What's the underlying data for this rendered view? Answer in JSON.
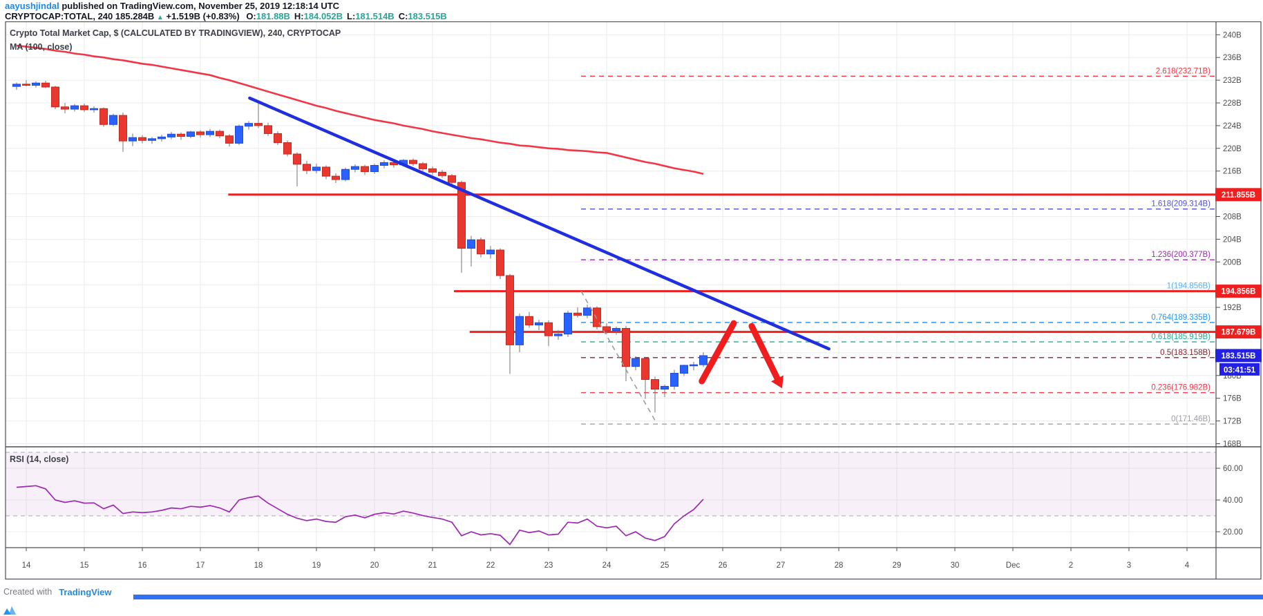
{
  "header": {
    "author": "aayushjindal",
    "published": " published on TradingView.com, November 25, 2019 12:18:14 UTC",
    "symbol": "CRYPTOCAP:TOTAL, 240",
    "last_price": "185.284B",
    "up_triangle": "▲",
    "change": "+1.519B (+0.83%)",
    "ohlc": [
      {
        "k": "O:",
        "v": "181.88B"
      },
      {
        "k": "H:",
        "v": "184.052B"
      },
      {
        "k": "L:",
        "v": "181.514B"
      },
      {
        "k": "C:",
        "v": "183.515B"
      }
    ]
  },
  "chart": {
    "title": "Crypto Total Market Cap, $ (CALCULATED BY TRADINGVIEW), 240, CRYPTOCAP",
    "ma_label": "MA (100, close)",
    "rsi_label": "RSI (14, close)"
  },
  "footer": {
    "created_with": "Created with",
    "brand": "TradingView"
  },
  "colors": {
    "up": "#2962ff",
    "up_border": "#1e4bd8",
    "down": "#e8382f",
    "down_border": "#c6281f",
    "wick": "#737375",
    "ma": "#f23645",
    "trendline": "#1e2ee0",
    "resistance": "#f01f1f",
    "tag_red": "#f01f1f",
    "tag_blue": "#2320e6",
    "rsi": "#9c27b0",
    "rsi_band_fill": "rgba(156,39,176,0.07)",
    "rsi_band_edge": "#a9a9ad",
    "arrow": "#ef1d1d",
    "grid": "#ebebeb",
    "frame": "#4a4e57",
    "axis_text": "#4c4c4c",
    "fib_anchor_dash": "#9b9b9b"
  },
  "chart_data": {
    "type": "candlestick",
    "title": "Crypto Total Market Cap, $ (CALCULATED BY TRADINGVIEW), 240, CRYPTOCAP",
    "symbol": "CRYPTOCAP:TOTAL",
    "interval_hours": 4,
    "candles_start": "2019-11-13 20:00 UTC",
    "ylim": [
      167.45,
      242.35
    ],
    "rsi_ylim": [
      10,
      73.5
    ],
    "rsi_band": [
      30,
      70
    ],
    "price_ticks": [
      {
        "v": 240,
        "label": "240B"
      },
      {
        "v": 236,
        "label": "236B"
      },
      {
        "v": 232,
        "label": "232B"
      },
      {
        "v": 228,
        "label": "228B"
      },
      {
        "v": 224,
        "label": "224B"
      },
      {
        "v": 220,
        "label": "220B"
      },
      {
        "v": 216,
        "label": "216B"
      },
      {
        "v": 208,
        "label": "208B"
      },
      {
        "v": 204,
        "label": "204B"
      },
      {
        "v": 200,
        "label": "200B"
      },
      {
        "v": 192,
        "label": "192B"
      },
      {
        "v": 180,
        "label": "180B"
      },
      {
        "v": 176,
        "label": "176B"
      },
      {
        "v": 172,
        "label": "172B"
      },
      {
        "v": 168,
        "label": "168B"
      }
    ],
    "grid_price_step": 4,
    "time_ticks": [
      {
        "label": "14",
        "day": 0
      },
      {
        "label": "15",
        "day": 1
      },
      {
        "label": "16",
        "day": 2
      },
      {
        "label": "17",
        "day": 3
      },
      {
        "label": "18",
        "day": 4
      },
      {
        "label": "19",
        "day": 5
      },
      {
        "label": "20",
        "day": 6
      },
      {
        "label": "21",
        "day": 7
      },
      {
        "label": "22",
        "day": 8
      },
      {
        "label": "23",
        "day": 9
      },
      {
        "label": "24",
        "day": 10
      },
      {
        "label": "25",
        "day": 11
      },
      {
        "label": "26",
        "day": 12
      },
      {
        "label": "27",
        "day": 13
      },
      {
        "label": "28",
        "day": 14
      },
      {
        "label": "29",
        "day": 15
      },
      {
        "label": "30",
        "day": 16
      },
      {
        "label": "Dec",
        "day": 17
      },
      {
        "label": "2",
        "day": 18
      },
      {
        "label": "3",
        "day": 19
      },
      {
        "label": "4",
        "day": 20
      }
    ],
    "rsi_ticks": [
      {
        "v": 60,
        "label": "60.00"
      },
      {
        "v": 40,
        "label": "40.00"
      },
      {
        "v": 20,
        "label": "20.00"
      }
    ],
    "candles": [
      [
        230.9,
        231.6,
        230.3,
        231.3
      ],
      [
        231.3,
        232.0,
        230.9,
        231.1
      ],
      [
        231.1,
        231.8,
        230.7,
        231.5
      ],
      [
        231.5,
        231.9,
        230.6,
        230.8
      ],
      [
        230.8,
        231.0,
        226.9,
        227.3
      ],
      [
        227.3,
        228.0,
        226.2,
        226.9
      ],
      [
        226.9,
        227.8,
        226.5,
        227.5
      ],
      [
        227.5,
        227.9,
        226.4,
        226.8
      ],
      [
        226.8,
        227.4,
        226.3,
        227.0
      ],
      [
        227.0,
        227.2,
        223.8,
        224.2
      ],
      [
        224.2,
        226.1,
        223.9,
        225.8
      ],
      [
        225.8,
        226.3,
        219.4,
        221.3
      ],
      [
        221.3,
        222.6,
        220.4,
        221.9
      ],
      [
        221.9,
        222.3,
        220.9,
        221.4
      ],
      [
        221.4,
        222.0,
        220.8,
        221.7
      ],
      [
        221.7,
        222.4,
        221.2,
        222.0
      ],
      [
        222.0,
        222.9,
        221.6,
        222.5
      ],
      [
        222.5,
        222.8,
        221.5,
        222.1
      ],
      [
        222.1,
        223.1,
        221.8,
        222.9
      ],
      [
        222.9,
        223.2,
        221.9,
        222.4
      ],
      [
        222.4,
        223.4,
        222.0,
        223.0
      ],
      [
        223.0,
        223.3,
        221.8,
        222.2
      ],
      [
        222.2,
        222.5,
        220.3,
        220.9
      ],
      [
        220.9,
        224.2,
        220.6,
        223.9
      ],
      [
        223.9,
        224.8,
        223.3,
        224.4
      ],
      [
        224.4,
        228.0,
        223.6,
        224.0
      ],
      [
        224.0,
        224.5,
        222.2,
        222.6
      ],
      [
        222.6,
        223.0,
        220.6,
        221.0
      ],
      [
        221.0,
        221.4,
        218.6,
        219.0
      ],
      [
        219.0,
        219.3,
        213.3,
        217.2
      ],
      [
        217.2,
        217.8,
        215.5,
        216.1
      ],
      [
        216.1,
        217.3,
        215.6,
        216.7
      ],
      [
        216.7,
        217.0,
        214.6,
        215.1
      ],
      [
        215.1,
        215.6,
        213.9,
        214.5
      ],
      [
        214.5,
        216.6,
        214.2,
        216.3
      ],
      [
        216.3,
        217.2,
        215.8,
        216.8
      ],
      [
        216.8,
        217.1,
        215.3,
        215.9
      ],
      [
        215.9,
        217.3,
        215.5,
        217.0
      ],
      [
        217.0,
        217.9,
        216.5,
        217.5
      ],
      [
        217.5,
        217.8,
        216.6,
        217.1
      ],
      [
        217.1,
        218.1,
        216.8,
        217.9
      ],
      [
        217.9,
        218.2,
        216.9,
        217.3
      ],
      [
        217.3,
        217.6,
        216.0,
        216.4
      ],
      [
        216.4,
        216.8,
        215.3,
        215.8
      ],
      [
        215.8,
        216.2,
        214.8,
        215.2
      ],
      [
        215.2,
        215.5,
        213.6,
        214.0
      ],
      [
        214.0,
        214.3,
        198.1,
        202.4
      ],
      [
        202.4,
        204.6,
        199.2,
        203.9
      ],
      [
        203.9,
        204.3,
        200.8,
        201.4
      ],
      [
        201.4,
        202.8,
        200.6,
        202.1
      ],
      [
        202.1,
        202.4,
        197.0,
        197.6
      ],
      [
        197.6,
        197.9,
        180.3,
        185.4
      ],
      [
        185.4,
        190.9,
        184.1,
        190.4
      ],
      [
        190.4,
        191.2,
        188.4,
        188.9
      ],
      [
        188.9,
        189.8,
        188.0,
        189.3
      ],
      [
        189.3,
        189.7,
        185.2,
        187.0
      ],
      [
        187.0,
        188.0,
        186.3,
        187.3
      ],
      [
        187.3,
        191.4,
        186.8,
        191.0
      ],
      [
        191.0,
        192.0,
        190.2,
        190.6
      ],
      [
        190.6,
        192.5,
        190.1,
        191.9
      ],
      [
        191.9,
        192.2,
        188.1,
        188.6
      ],
      [
        188.6,
        189.2,
        187.3,
        187.9
      ],
      [
        187.9,
        188.6,
        187.2,
        188.3
      ],
      [
        188.3,
        188.7,
        179.0,
        181.6
      ],
      [
        181.6,
        183.4,
        180.9,
        183.0
      ],
      [
        183.0,
        183.3,
        175.9,
        179.3
      ],
      [
        179.3,
        179.8,
        173.5,
        177.6
      ],
      [
        177.6,
        178.4,
        176.2,
        178.1
      ],
      [
        178.1,
        181.0,
        177.5,
        180.4
      ],
      [
        180.4,
        181.9,
        179.9,
        181.8
      ],
      [
        181.8,
        182.4,
        180.9,
        181.9
      ],
      [
        181.9,
        184.1,
        181.5,
        183.5
      ]
    ],
    "ma_100": [
      238.1,
      237.9,
      237.7,
      237.5,
      237.2,
      237.0,
      236.7,
      236.5,
      236.2,
      236.0,
      235.7,
      235.5,
      235.2,
      234.9,
      234.7,
      234.4,
      234.1,
      233.8,
      233.5,
      233.2,
      232.9,
      232.4,
      232.0,
      231.5,
      231.0,
      230.5,
      230.0,
      229.5,
      229.0,
      228.5,
      228.0,
      227.5,
      227.1,
      226.6,
      226.2,
      225.8,
      225.4,
      225.0,
      224.7,
      224.4,
      224.0,
      223.7,
      223.4,
      223.0,
      222.7,
      222.4,
      222.1,
      221.8,
      221.6,
      221.3,
      221.0,
      220.8,
      220.5,
      220.4,
      220.2,
      220.0,
      219.9,
      219.7,
      219.6,
      219.5,
      219.3,
      219.2,
      218.8,
      218.4,
      218.0,
      217.6,
      217.3,
      216.9,
      216.5,
      216.2,
      215.9,
      215.5
    ],
    "rsi_14": [
      48,
      48.5,
      49,
      47,
      40,
      38.5,
      39.5,
      38,
      38.2,
      34.5,
      36.8,
      31.5,
      32.5,
      32,
      32.5,
      33.5,
      35,
      34.5,
      36,
      35.5,
      36.5,
      35,
      32.5,
      40,
      41.5,
      42.5,
      38,
      34.5,
      31,
      28.5,
      27,
      28,
      26.5,
      26,
      29.5,
      30.5,
      28.8,
      31,
      32,
      31.2,
      33,
      31.8,
      30.2,
      29,
      28,
      26,
      17.5,
      20,
      18,
      18.8,
      17.8,
      12,
      21,
      19.5,
      20.5,
      18,
      18.5,
      26,
      25.5,
      28,
      23.5,
      22.5,
      23.5,
      17.5,
      20,
      16,
      14.5,
      17,
      25,
      30,
      34,
      40.5
    ],
    "fib_levels": [
      {
        "label": "2.618(232.71B)",
        "value": 232.71,
        "color": "#f23645"
      },
      {
        "label": "1.618(209.314B)",
        "value": 209.314,
        "color": "#5050d0"
      },
      {
        "label": "1.236(200.377B)",
        "value": 200.377,
        "color": "#9c27b0"
      },
      {
        "label": "1(194.856B)",
        "value": 194.856,
        "color": "#5ab0ee"
      },
      {
        "label": "0.764(189.335B)",
        "value": 189.335,
        "color": "#2196f3"
      },
      {
        "label": "0.618(185.919B)",
        "value": 185.919,
        "color": "#22ab94"
      },
      {
        "label": "0.5(183.158B)",
        "value": 183.158,
        "color": "#80222c"
      },
      {
        "label": "0.236(176.982B)",
        "value": 176.982,
        "color": "#f23645"
      },
      {
        "label": "0(171.46B)",
        "value": 171.46,
        "color": "#9aa0a6"
      }
    ],
    "fib_start_day": 9.56,
    "resistance_lines": [
      {
        "value": 211.855,
        "start_day": 3.48
      },
      {
        "value": 194.856,
        "start_day": 7.37
      },
      {
        "value": 187.679,
        "start_day": 7.64
      }
    ],
    "price_tags": [
      {
        "label": "211.855B",
        "value": 211.855,
        "kind": "red"
      },
      {
        "label": "194.856B",
        "value": 194.856,
        "kind": "red"
      },
      {
        "label": "187.679B",
        "value": 187.679,
        "kind": "red"
      },
      {
        "label": "183.515B",
        "value": 183.515,
        "kind": "blue"
      }
    ],
    "countdown": "03:41:51",
    "drawings": {
      "trendline": {
        "from": {
          "day": 3.85,
          "price": 228.85
        },
        "to": {
          "day": 13.83,
          "price": 184.7
        }
      },
      "fib_anchor": {
        "from": {
          "day": 9.56,
          "price": 194.856
        },
        "to": {
          "day": 10.87,
          "price": 171.46
        }
      },
      "arrows": [
        {
          "from": {
            "day": 11.64,
            "price": 179.0
          },
          "to": {
            "day": 12.19,
            "price": 189.2
          },
          "head": false
        },
        {
          "from": {
            "day": 12.5,
            "price": 188.7
          },
          "to": {
            "day": 12.94,
            "price": 179.5
          },
          "head": true
        }
      ]
    }
  }
}
